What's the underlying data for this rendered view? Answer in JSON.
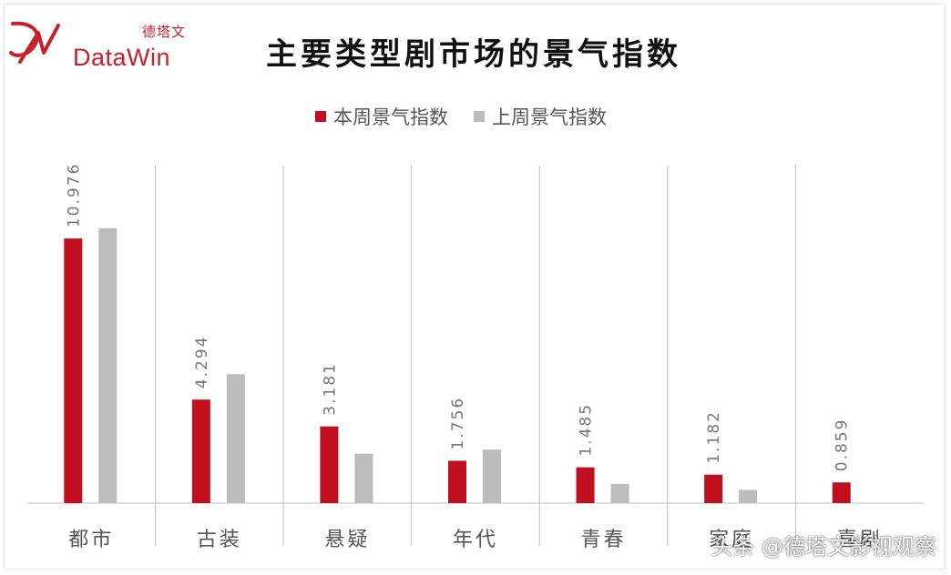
{
  "brand": {
    "logo_cn": "德塔文",
    "logo_en": "DataWin",
    "logo_mark_color": "#c8202a"
  },
  "watermark": "头条 @德塔文影视观察",
  "colors": {
    "this_week": "#c00f1f",
    "last_week": "#bcbcbc",
    "axis": "#bfbfbf",
    "label": "#777777"
  },
  "chart_data": {
    "type": "bar",
    "title": "主要类型剧市场的景气指数",
    "categories": [
      "都市",
      "古装",
      "悬疑",
      "年代",
      "青春",
      "家庭",
      "喜剧"
    ],
    "series": [
      {
        "name": "本周景气指数",
        "values": [
          10.976,
          4.294,
          3.181,
          1.756,
          1.485,
          1.182,
          0.859
        ],
        "labels": [
          "10.976",
          "4.294",
          "3.181",
          "1.756",
          "1.485",
          "1.182",
          "0.859"
        ]
      },
      {
        "name": "上周景气指数",
        "values": [
          11.4,
          5.35,
          2.05,
          2.22,
          0.8,
          0.55,
          0
        ]
      }
    ],
    "ylim": [
      0,
      14
    ],
    "xlabel": "",
    "ylabel": "",
    "legend": "top-center",
    "grid": "vertical category separators"
  }
}
